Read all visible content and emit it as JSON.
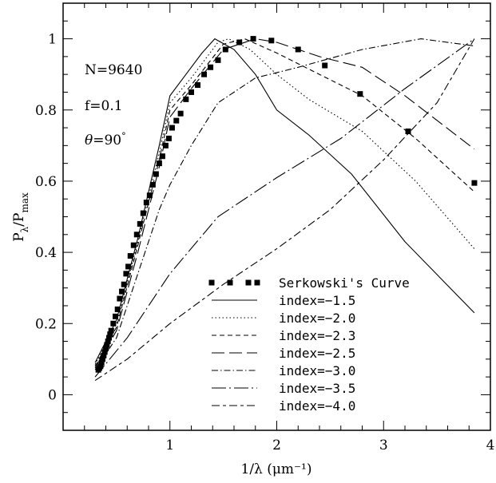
{
  "chart_data": {
    "type": "line",
    "xlabel": "1/λ (μm⁻¹)",
    "ylabel_main": "P",
    "ylabel_sub1": "λ",
    "ylabel_mid": "/P",
    "ylabel_sub2": "max",
    "xlim": [
      0,
      4
    ],
    "ylim": [
      -0.1,
      1.1
    ],
    "x_ticks": [
      1,
      2,
      3,
      4
    ],
    "y_ticks": [
      0,
      0.2,
      0.4,
      0.6,
      0.8,
      1
    ],
    "annotations": [
      "N=9640",
      "f=0.1"
    ],
    "theta_symbol": "θ",
    "theta_value": "=90",
    "theta_degree": "°",
    "grid": false,
    "legend_position": "bottom-center",
    "series": [
      {
        "name": "Serkowski's Curve",
        "style": "markers",
        "x": [
          0.33,
          0.34,
          0.35,
          0.36,
          0.37,
          0.38,
          0.39,
          0.4,
          0.41,
          0.42,
          0.43,
          0.44,
          0.45,
          0.47,
          0.49,
          0.51,
          0.53,
          0.55,
          0.57,
          0.59,
          0.61,
          0.63,
          0.66,
          0.69,
          0.72,
          0.75,
          0.78,
          0.81,
          0.84,
          0.87,
          0.9,
          0.93,
          0.96,
          0.99,
          1.02,
          1.06,
          1.1,
          1.15,
          1.2,
          1.26,
          1.32,
          1.38,
          1.45,
          1.52,
          1.65,
          1.78,
          1.95,
          2.2,
          2.45,
          2.78,
          3.23,
          3.85
        ],
        "y": [
          0.07,
          0.075,
          0.08,
          0.09,
          0.1,
          0.11,
          0.12,
          0.13,
          0.14,
          0.15,
          0.16,
          0.17,
          0.18,
          0.2,
          0.22,
          0.24,
          0.27,
          0.29,
          0.31,
          0.34,
          0.36,
          0.39,
          0.42,
          0.45,
          0.48,
          0.51,
          0.54,
          0.56,
          0.59,
          0.62,
          0.65,
          0.67,
          0.7,
          0.72,
          0.75,
          0.77,
          0.79,
          0.83,
          0.85,
          0.87,
          0.9,
          0.92,
          0.94,
          0.97,
          0.99,
          1.0,
          0.995,
          0.97,
          0.925,
          0.845,
          0.74,
          0.595
        ]
      },
      {
        "name": "index=−1.5",
        "style": "solid",
        "x": [
          0.3,
          0.5,
          0.7,
          0.9,
          1.0,
          1.15,
          1.3,
          1.42,
          1.6,
          1.8,
          2.0,
          2.3,
          2.7,
          3.2,
          3.85
        ],
        "y": [
          0.09,
          0.21,
          0.44,
          0.7,
          0.84,
          0.9,
          0.96,
          1.0,
          0.97,
          0.9,
          0.8,
          0.73,
          0.62,
          0.43,
          0.23
        ]
      },
      {
        "name": "index=−2.0",
        "style": "dotted",
        "x": [
          0.3,
          0.5,
          0.7,
          0.9,
          1.0,
          1.2,
          1.45,
          1.55,
          1.75,
          2.0,
          2.3,
          2.8,
          3.3,
          3.85
        ],
        "y": [
          0.085,
          0.2,
          0.43,
          0.68,
          0.82,
          0.89,
          0.99,
          1.0,
          0.97,
          0.9,
          0.83,
          0.74,
          0.6,
          0.41
        ]
      },
      {
        "name": "index=−2.3",
        "style": "short-dash",
        "x": [
          0.3,
          0.5,
          0.7,
          0.9,
          1.0,
          1.2,
          1.5,
          1.7,
          2.0,
          2.4,
          2.8,
          3.3,
          3.85
        ],
        "y": [
          0.08,
          0.19,
          0.42,
          0.66,
          0.8,
          0.87,
          0.985,
          1.0,
          0.96,
          0.9,
          0.84,
          0.72,
          0.57
        ]
      },
      {
        "name": "index=−2.5",
        "style": "long-dash",
        "x": [
          0.3,
          0.5,
          0.7,
          0.9,
          1.0,
          1.2,
          1.5,
          1.8,
          2.0,
          2.4,
          2.8,
          3.2,
          3.85
        ],
        "y": [
          0.075,
          0.18,
          0.4,
          0.64,
          0.78,
          0.86,
          0.97,
          1.0,
          0.99,
          0.95,
          0.92,
          0.84,
          0.69
        ]
      },
      {
        "name": "index=−3.0",
        "style": "dash-dot",
        "x": [
          0.3,
          0.5,
          0.7,
          0.9,
          1.0,
          1.2,
          1.45,
          1.8,
          2.2,
          2.8,
          3.35,
          3.85
        ],
        "y": [
          0.07,
          0.16,
          0.34,
          0.52,
          0.59,
          0.7,
          0.82,
          0.89,
          0.92,
          0.97,
          1.0,
          0.98
        ]
      },
      {
        "name": "index=−3.5",
        "style": "long-dash-dot",
        "x": [
          0.3,
          0.6,
          1.0,
          1.45,
          2.0,
          2.6,
          3.2,
          3.85
        ],
        "y": [
          0.05,
          0.16,
          0.34,
          0.5,
          0.61,
          0.72,
          0.86,
          1.0
        ]
      },
      {
        "name": "index=−4.0",
        "style": "dash-short",
        "x": [
          0.3,
          0.6,
          1.0,
          1.5,
          2.0,
          2.5,
          3.0,
          3.5,
          3.85
        ],
        "y": [
          0.04,
          0.1,
          0.2,
          0.31,
          0.41,
          0.52,
          0.66,
          0.82,
          1.0
        ]
      }
    ]
  }
}
